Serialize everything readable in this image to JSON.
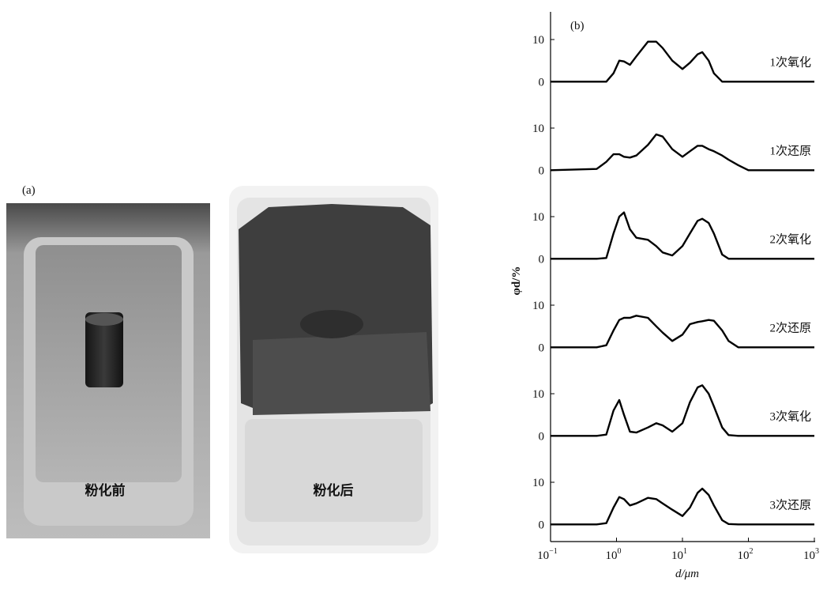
{
  "panel_a": {
    "label": "(a)",
    "captions": [
      "粉化前",
      "粉化后"
    ]
  },
  "chart_data": {
    "type": "line",
    "panel_label": "(b)",
    "x_label": "d/μm",
    "y_label": "φd/%",
    "xscale": "log",
    "xlim": [
      0.1,
      1000
    ],
    "xticks": [
      {
        "value": 0.1,
        "label": "10",
        "exponent": "−1"
      },
      {
        "value": 1,
        "label": "10",
        "exponent": "0"
      },
      {
        "value": 10,
        "label": "10",
        "exponent": "1"
      },
      {
        "value": 100,
        "label": "10",
        "exponent": "2"
      },
      {
        "value": 1000,
        "label": "10",
        "exponent": "3"
      }
    ],
    "ylim": [
      -2,
      19
    ],
    "yticks": [
      0,
      10
    ],
    "color": "#000000",
    "x": [
      0.1,
      0.5,
      0.7,
      0.9,
      1.1,
      1.3,
      1.6,
      2,
      3,
      4,
      5,
      7,
      10,
      13,
      17,
      20,
      25,
      30,
      40,
      50,
      70,
      100,
      1000
    ],
    "series": [
      {
        "name": "1次氧化",
        "values": [
          0,
          0,
          0,
          2,
          5,
          4.8,
          4,
          6,
          9.5,
          9.5,
          8,
          5,
          3,
          4.5,
          6.5,
          7,
          5,
          2,
          0,
          0,
          0,
          0,
          0
        ]
      },
      {
        "name": "1次还原",
        "values": [
          0,
          0.3,
          2,
          3.8,
          3.8,
          3.2,
          3,
          3.5,
          6,
          8.5,
          8,
          5,
          3.2,
          4.5,
          5.8,
          5.8,
          5,
          4.5,
          3.5,
          2.5,
          1.2,
          0,
          0
        ]
      },
      {
        "name": "2次氧化",
        "values": [
          0,
          0,
          0.2,
          6,
          10,
          11,
          7,
          5,
          4.5,
          3,
          1.5,
          0.8,
          3,
          6,
          9,
          9.5,
          8.5,
          6,
          1,
          0,
          0,
          0,
          0
        ]
      },
      {
        "name": "2次还原",
        "values": [
          0,
          0,
          0.5,
          4,
          6.5,
          7,
          7,
          7.5,
          7,
          5,
          3.5,
          1.5,
          3,
          5.5,
          6,
          6.2,
          6.5,
          6.3,
          4,
          1.5,
          0,
          0,
          0
        ]
      },
      {
        "name": "3次氧化",
        "values": [
          0,
          0,
          0.3,
          6,
          8.5,
          5,
          1,
          0.8,
          2,
          3,
          2.5,
          1,
          3,
          8,
          11.5,
          12,
          10,
          7,
          2,
          0.2,
          0,
          0,
          0
        ]
      },
      {
        "name": "3次还原",
        "values": [
          0,
          0,
          0.3,
          4,
          6.5,
          6,
          4.5,
          5,
          6.3,
          6,
          5,
          3.5,
          2,
          4,
          7.5,
          8.5,
          7,
          4.5,
          1,
          0.1,
          0,
          0,
          0
        ]
      }
    ]
  }
}
